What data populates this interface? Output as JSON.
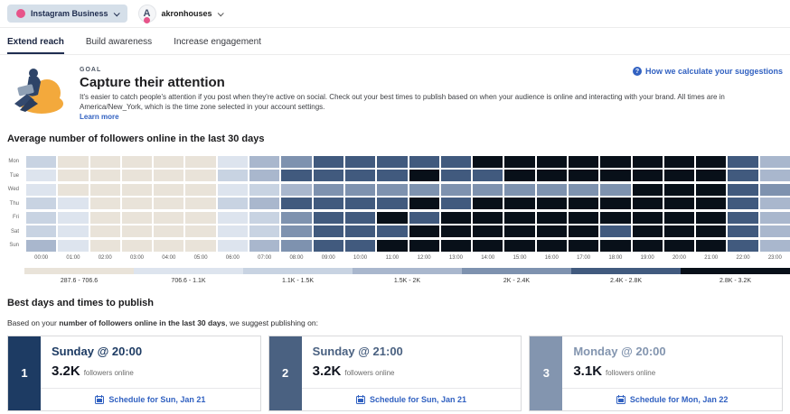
{
  "top_bar": {
    "channel_selector": {
      "label": "Instagram Business",
      "dot_color": "#e7548a"
    },
    "account_selector": {
      "label": "akronhouses",
      "avatar_letter": "A",
      "badge_color": "#e7548a"
    }
  },
  "tabs": [
    {
      "label": "Extend reach",
      "active": true
    },
    {
      "label": "Build awareness",
      "active": false
    },
    {
      "label": "Increase engagement",
      "active": false
    }
  ],
  "goal": {
    "eyebrow": "GOAL",
    "title": "Capture their attention",
    "description": "It's easier to catch people's attention if you post when they're active on social. Check out your best times to publish based on when your audience is online and interacting with your brand. All times are in America/New_York, which is the time zone selected in your account settings.",
    "learn_more_label": "Learn more",
    "help_link_label": "How we calculate your suggestions"
  },
  "heatmap": {
    "title": "Average number of followers online in the last 30 days",
    "chart_data": {
      "type": "heatmap",
      "rows": [
        "Mon",
        "Tue",
        "Wed",
        "Thu",
        "Fri",
        "Sat",
        "Sun"
      ],
      "columns": [
        "00:00",
        "01:00",
        "02:00",
        "03:00",
        "04:00",
        "05:00",
        "06:00",
        "07:00",
        "08:00",
        "09:00",
        "10:00",
        "11:00",
        "12:00",
        "13:00",
        "14:00",
        "15:00",
        "16:00",
        "17:00",
        "18:00",
        "19:00",
        "20:00",
        "21:00",
        "22:00",
        "23:00"
      ],
      "legend_buckets": [
        {
          "label": "287.6 - 706.6",
          "color": "#e9e3d9"
        },
        {
          "label": "706.6 - 1.1K",
          "color": "#dde4ee"
        },
        {
          "label": "1.1K - 1.5K",
          "color": "#c8d3e2"
        },
        {
          "label": "1.5K - 2K",
          "color": "#a9b7cd"
        },
        {
          "label": "2K - 2.4K",
          "color": "#7e92af"
        },
        {
          "label": "2.4K - 2.8K",
          "color": "#415a7e"
        },
        {
          "label": "2.8K - 3.2K",
          "color": "#081019"
        }
      ],
      "grid_bucket_indices": [
        [
          3,
          1,
          1,
          1,
          1,
          1,
          2,
          4,
          5,
          6,
          6,
          6,
          6,
          6,
          7,
          7,
          7,
          7,
          7,
          7,
          7,
          7,
          6,
          4
        ],
        [
          2,
          1,
          1,
          1,
          1,
          1,
          3,
          4,
          6,
          6,
          6,
          6,
          7,
          6,
          6,
          7,
          7,
          7,
          7,
          7,
          7,
          7,
          6,
          4
        ],
        [
          2,
          1,
          1,
          1,
          1,
          1,
          2,
          3,
          4,
          5,
          5,
          5,
          5,
          5,
          5,
          5,
          5,
          5,
          5,
          7,
          7,
          7,
          6,
          5
        ],
        [
          3,
          2,
          1,
          1,
          1,
          1,
          3,
          4,
          6,
          6,
          6,
          6,
          7,
          6,
          7,
          7,
          7,
          7,
          7,
          7,
          7,
          7,
          6,
          4
        ],
        [
          3,
          2,
          1,
          1,
          1,
          1,
          2,
          3,
          5,
          6,
          6,
          7,
          6,
          7,
          7,
          7,
          7,
          7,
          7,
          7,
          7,
          7,
          6,
          4
        ],
        [
          3,
          2,
          1,
          1,
          1,
          1,
          2,
          3,
          5,
          6,
          6,
          6,
          7,
          7,
          7,
          7,
          7,
          7,
          6,
          7,
          7,
          7,
          6,
          4
        ],
        [
          4,
          2,
          1,
          1,
          1,
          1,
          2,
          4,
          5,
          6,
          6,
          7,
          7,
          7,
          7,
          7,
          7,
          7,
          7,
          7,
          7,
          7,
          6,
          4
        ]
      ]
    }
  },
  "best_times": {
    "title": "Best days and times to publish",
    "intro_prefix": "Based on your ",
    "intro_bold": "number of followers online in the last 30 days",
    "intro_suffix": ", we suggest publishing on:",
    "cards": [
      {
        "rank": "1",
        "title": "Sunday @ 20:00",
        "value": "3.2K",
        "value_suffix": "followers online",
        "cta": "Schedule for Sun, Jan 21",
        "accent": "#1d3b63"
      },
      {
        "rank": "2",
        "title": "Sunday @ 21:00",
        "value": "3.2K",
        "value_suffix": "followers online",
        "cta": "Schedule for Sun, Jan 21",
        "accent": "#4a6181"
      },
      {
        "rank": "3",
        "title": "Monday @ 20:00",
        "value": "3.1K",
        "value_suffix": "followers online",
        "cta": "Schedule for Mon, Jan 22",
        "accent": "#8395af"
      }
    ]
  },
  "colors": {
    "link_blue": "#3161c1",
    "chip_bg": "#d5dfe9",
    "illustration_orange": "#f3a93c",
    "illustration_navy": "#2e4468"
  }
}
